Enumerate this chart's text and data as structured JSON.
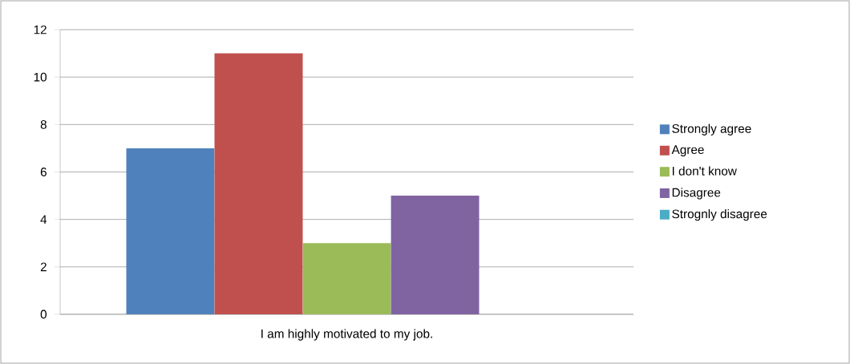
{
  "chart_data": {
    "type": "bar",
    "categories": [
      "I am highly motivated to my job."
    ],
    "series": [
      {
        "name": "Strongly agree",
        "color": "#4f81bd",
        "values": [
          7
        ]
      },
      {
        "name": "Agree",
        "color": "#c0504d",
        "values": [
          11
        ]
      },
      {
        "name": "I don't know",
        "color": "#9bbb59",
        "values": [
          3
        ]
      },
      {
        "name": "Disagree",
        "color": "#8064a2",
        "values": [
          5
        ]
      },
      {
        "name": "Strognly disagree",
        "color": "#4bacc6",
        "values": [
          0
        ]
      }
    ],
    "ylim": [
      0,
      12
    ],
    "yticks": [
      0,
      2,
      4,
      6,
      8,
      10,
      12
    ],
    "grid": "y",
    "legend": "right"
  }
}
